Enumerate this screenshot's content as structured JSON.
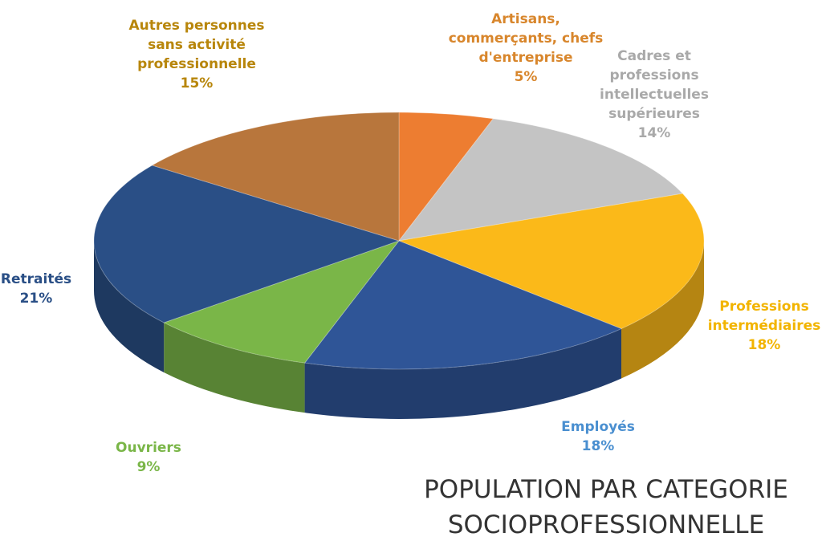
{
  "chart_data": {
    "type": "pie3d",
    "title": "POPULATION PAR CATEGORIE SOCIOPROFESSIONNELLE",
    "categories": [
      "Artisans, commerçants, chefs d'entreprise",
      "Cadres et professions intellectuelles supérieures",
      "Professions intermédiaires",
      "Employés",
      "Ouvriers",
      "Retraités",
      "Autres personnes sans activité professionnelle"
    ],
    "values": [
      5,
      14,
      18,
      18,
      9,
      21,
      15
    ],
    "value_labels": [
      "5%",
      "14%",
      "18%",
      "18%",
      "9%",
      "21%",
      "15%"
    ],
    "colors": [
      "#ed7d31",
      "#c4c4c4",
      "#fbb919",
      "#2f5597",
      "#7ab648",
      "#2a4f86",
      "#b8763c"
    ],
    "label_colors": [
      "#d8862c",
      "#a9a9a9",
      "#f2b400",
      "#4a8fd0",
      "#7ab648",
      "#2a4f86",
      "#b8860b"
    ]
  }
}
